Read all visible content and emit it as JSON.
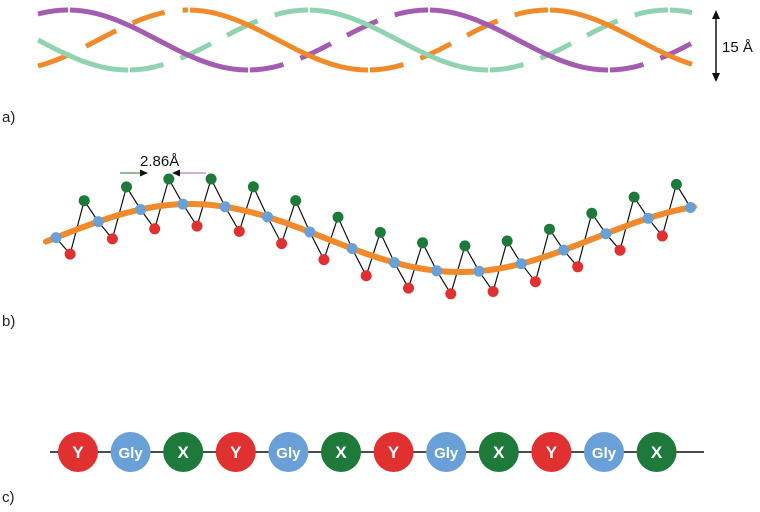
{
  "panels": [
    {
      "label": "a)"
    },
    {
      "label": "b)"
    },
    {
      "label": "c)"
    }
  ],
  "triple_helix": {
    "diameter_label": "15 Å",
    "strands": [
      {
        "color": "#8fd3b0"
      },
      {
        "color": "#f08a2a"
      },
      {
        "color": "#a45cb0"
      }
    ]
  },
  "single_chain": {
    "rise_label": "2.86Å",
    "backbone_color": "#f08a2a",
    "residue_colors": {
      "gly": "#6aa0d8",
      "x": "#1e7a3a",
      "y": "#e03030"
    }
  },
  "sequence": {
    "residues": [
      {
        "label": "Y",
        "type": "y"
      },
      {
        "label": "Gly",
        "type": "gly"
      },
      {
        "label": "X",
        "type": "x"
      },
      {
        "label": "Y",
        "type": "y"
      },
      {
        "label": "Gly",
        "type": "gly"
      },
      {
        "label": "X",
        "type": "x"
      },
      {
        "label": "Y",
        "type": "y"
      },
      {
        "label": "Gly",
        "type": "gly"
      },
      {
        "label": "X",
        "type": "x"
      },
      {
        "label": "Y",
        "type": "y"
      },
      {
        "label": "Gly",
        "type": "gly"
      },
      {
        "label": "X",
        "type": "x"
      }
    ],
    "colors": {
      "y": "#e03030",
      "gly": "#6aa0d8",
      "x": "#1e7a3a"
    }
  }
}
